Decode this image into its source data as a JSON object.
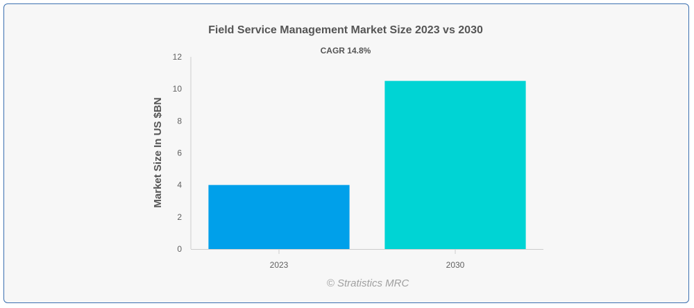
{
  "chart_data": {
    "type": "bar",
    "title": "Field Service Management Market Size 2023 vs 2030",
    "subtitle": "CAGR 14.8%",
    "categories": [
      "2023",
      "2030"
    ],
    "values": [
      4.0,
      10.5
    ],
    "colors": [
      "#00a0ea",
      "#00d4d4"
    ],
    "xlabel": "",
    "ylabel": "Market Size In US $BN",
    "ylim": [
      0,
      12
    ],
    "yticks": [
      0,
      2,
      4,
      6,
      8,
      10,
      12
    ],
    "grid": false,
    "credit": "© Stratistics MRC"
  }
}
